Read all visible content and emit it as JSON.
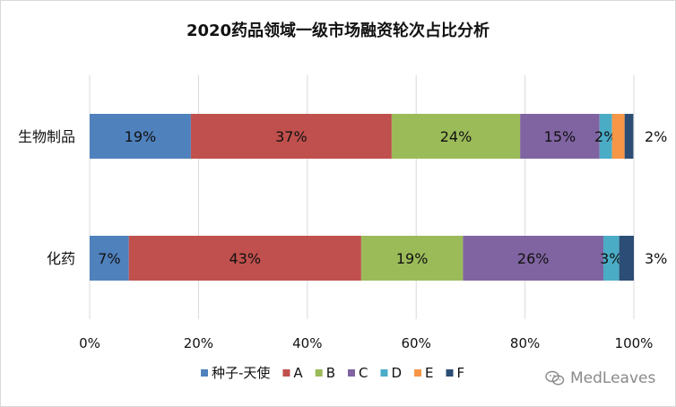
{
  "chart_data": {
    "type": "bar",
    "orientation": "horizontal",
    "stacked": "percent",
    "title": "2020药品领域一级市场融资轮次占比分析",
    "categories": [
      "生物制品",
      "化药"
    ],
    "series": [
      {
        "name": "种子-天使",
        "color": "#4f81bd",
        "values": [
          18.6,
          7.2
        ]
      },
      {
        "name": "A",
        "color": "#c0504d",
        "values": [
          36.9,
          42.7
        ]
      },
      {
        "name": "B",
        "color": "#9bbb59",
        "values": [
          23.6,
          18.7
        ]
      },
      {
        "name": "C",
        "color": "#8064a2",
        "values": [
          14.6,
          25.8
        ]
      },
      {
        "name": "D",
        "color": "#4bacc6",
        "values": [
          2.3,
          2.9
        ]
      },
      {
        "name": "E",
        "color": "#f79646",
        "values": [
          2.3,
          0
        ]
      },
      {
        "name": "F",
        "color": "#2c4d75",
        "values": [
          1.6,
          2.7
        ]
      }
    ],
    "data_labels": [
      [
        "19%",
        "37%",
        "24%",
        "15%",
        "2%",
        "",
        "2%"
      ],
      [
        "7%",
        "43%",
        "19%",
        "26%",
        "3%",
        "",
        "3%"
      ]
    ],
    "x_ticks": [
      "0%",
      "20%",
      "40%",
      "60%",
      "80%",
      "100%"
    ],
    "xlim": [
      0,
      100
    ],
    "grid": true,
    "legend_position": "bottom"
  },
  "watermark": "MedLeaves"
}
